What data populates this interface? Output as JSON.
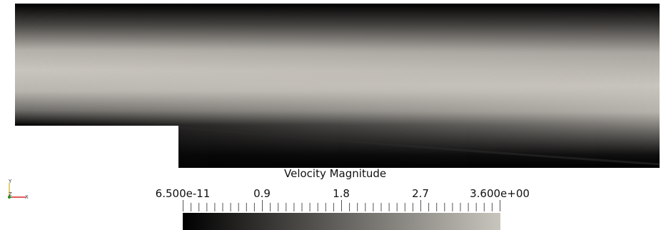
{
  "scalar_bar": {
    "title": "Velocity Magnitude",
    "tick_labels": [
      "6.500e-11",
      "0.9",
      "1.8",
      "2.7",
      "3.600e+00"
    ],
    "range": [
      6.5e-11,
      3.6
    ],
    "colormap": [
      "#000000",
      "#c8c5bd"
    ]
  },
  "orientation_axes": {
    "y_label": "Y",
    "z_label": "Z",
    "x_label": "X",
    "x_color": "#d62728",
    "y_color": "#e8c200",
    "z_color": "#1a8f1a"
  },
  "colors": {
    "flow_low": "#000000",
    "flow_high": "#c8c5bd",
    "background": "#ffffff"
  }
}
